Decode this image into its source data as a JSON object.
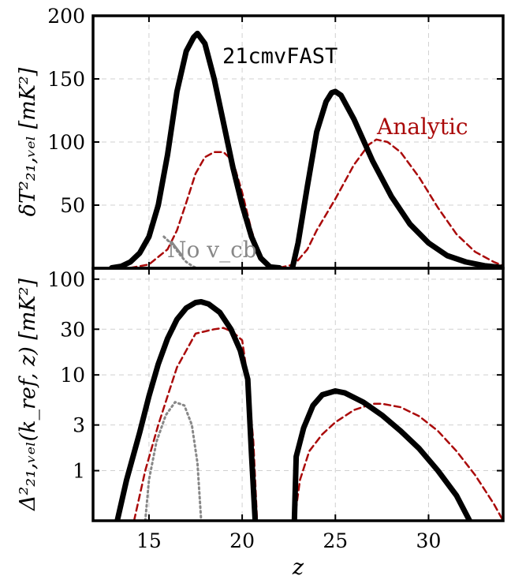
{
  "chart_data": [
    {
      "type": "line",
      "ylabel": "δT²₂₁,ᵥₑₗ [mK²]",
      "xlim": [
        12,
        34
      ],
      "ylim": [
        0,
        200
      ],
      "yticks": [
        50,
        100,
        150,
        200
      ],
      "grid": true,
      "annotations": [
        "21cmvFAST",
        "Analytic",
        "No v_cb"
      ],
      "series": [
        {
          "name": "21cmvFAST",
          "color": "#000000",
          "style": "solid",
          "segments": [
            [
              [
                13.0,
                0.3
              ],
              [
                13.5,
                1.5
              ],
              [
                14.0,
                5
              ],
              [
                14.5,
                12
              ],
              [
                15.0,
                25
              ],
              [
                15.5,
                50
              ],
              [
                16.0,
                90
              ],
              [
                16.5,
                140
              ],
              [
                17.0,
                172
              ],
              [
                17.4,
                183
              ],
              [
                17.6,
                186
              ],
              [
                18.0,
                178
              ],
              [
                18.5,
                150
              ],
              [
                19.0,
                115
              ],
              [
                19.5,
                80
              ],
              [
                20.0,
                50
              ],
              [
                20.5,
                25
              ],
              [
                21.0,
                8
              ],
              [
                21.5,
                1
              ],
              [
                22.0,
                0.3
              ]
            ],
            [
              [
                22.7,
                0.5
              ],
              [
                23.0,
                20
              ],
              [
                23.5,
                65
              ],
              [
                24.0,
                108
              ],
              [
                24.5,
                132
              ],
              [
                24.8,
                139
              ],
              [
                25.0,
                140
              ],
              [
                25.3,
                137
              ],
              [
                26.0,
                118
              ],
              [
                27.0,
                85
              ],
              [
                28.0,
                57
              ],
              [
                29.0,
                35
              ],
              [
                30.0,
                20
              ],
              [
                31.0,
                10
              ],
              [
                32.0,
                5
              ],
              [
                33.0,
                2
              ],
              [
                34.0,
                0.5
              ]
            ]
          ]
        },
        {
          "name": "Analytic",
          "color": "#aa0a0a",
          "style": "dashed",
          "segments": [
            [
              [
                14.0,
                0.3
              ],
              [
                15.0,
                3
              ],
              [
                16.0,
                15
              ],
              [
                16.5,
                30
              ],
              [
                17.0,
                52
              ],
              [
                17.5,
                75
              ],
              [
                18.0,
                88
              ],
              [
                18.5,
                92
              ],
              [
                19.0,
                92
              ],
              [
                19.5,
                85
              ],
              [
                20.0,
                60
              ],
              [
                20.5,
                30
              ],
              [
                21.0,
                8
              ],
              [
                21.5,
                1.5
              ],
              [
                22.0,
                0.5
              ]
            ],
            [
              [
                22.0,
                0.5
              ],
              [
                22.8,
                3
              ],
              [
                23.5,
                15
              ],
              [
                24.0,
                30
              ],
              [
                25.0,
                55
              ],
              [
                26.0,
                82
              ],
              [
                26.8,
                98
              ],
              [
                27.2,
                102
              ],
              [
                27.8,
                100
              ],
              [
                28.5,
                92
              ],
              [
                29.5,
                72
              ],
              [
                30.5,
                48
              ],
              [
                31.5,
                27
              ],
              [
                32.5,
                13
              ],
              [
                33.5,
                5
              ],
              [
                34.0,
                2
              ]
            ]
          ]
        },
        {
          "name": "No v_cb",
          "color": "#888888",
          "style": "dotted",
          "segments": [
            [
              [
                15.8,
                25
              ],
              [
                16.3,
                18
              ],
              [
                16.7,
                10
              ],
              [
                17.0,
                5
              ],
              [
                17.3,
                2
              ],
              [
                17.5,
                0.5
              ]
            ]
          ]
        }
      ]
    },
    {
      "type": "line",
      "ylabel": "Δ²₂₁,ᵥₑₗ(k_ref, z) [mK²]",
      "xlabel": "z",
      "xlim": [
        12,
        34
      ],
      "ylim": [
        0.3,
        130
      ],
      "yscale": "log",
      "xticks": [
        15,
        20,
        25,
        30
      ],
      "yticks": [
        1,
        3,
        10,
        30,
        100
      ],
      "grid": true,
      "series": [
        {
          "name": "21cmvFAST",
          "color": "#000000",
          "style": "solid",
          "segments": [
            [
              [
                13.3,
                0.3
              ],
              [
                13.8,
                0.8
              ],
              [
                14.5,
                2.5
              ],
              [
                15.0,
                6
              ],
              [
                15.5,
                13
              ],
              [
                16.0,
                24
              ],
              [
                16.5,
                38
              ],
              [
                17.0,
                50
              ],
              [
                17.5,
                57
              ],
              [
                17.8,
                58
              ],
              [
                18.2,
                55
              ],
              [
                18.8,
                45
              ],
              [
                19.4,
                30
              ],
              [
                19.9,
                18
              ],
              [
                20.3,
                9
              ],
              [
                20.5,
                1.5
              ],
              [
                20.7,
                0.3
              ]
            ],
            [
              [
                22.8,
                0.3
              ],
              [
                22.9,
                1.4
              ],
              [
                23.3,
                2.8
              ],
              [
                23.8,
                4.8
              ],
              [
                24.3,
                6.2
              ],
              [
                25.0,
                6.8
              ],
              [
                25.5,
                6.5
              ],
              [
                26.5,
                5.2
              ],
              [
                27.5,
                3.8
              ],
              [
                28.5,
                2.6
              ],
              [
                29.5,
                1.7
              ],
              [
                30.5,
                1.0
              ],
              [
                31.5,
                0.55
              ],
              [
                32.2,
                0.3
              ]
            ]
          ]
        },
        {
          "name": "Analytic",
          "color": "#aa0a0a",
          "style": "dashed",
          "segments": [
            [
              [
                14.2,
                0.3
              ],
              [
                14.8,
                1.0
              ],
              [
                15.5,
                3
              ],
              [
                16.0,
                6
              ],
              [
                16.5,
                12
              ],
              [
                17.0,
                18
              ],
              [
                17.5,
                27
              ],
              [
                18.5,
                30
              ],
              [
                19.0,
                31
              ],
              [
                19.5,
                28
              ],
              [
                20.0,
                23
              ],
              [
                20.3,
                9
              ],
              [
                20.6,
                2
              ],
              [
                20.8,
                0.3
              ]
            ],
            [
              [
                22.8,
                0.3
              ],
              [
                23.1,
                0.8
              ],
              [
                23.6,
                1.6
              ],
              [
                24.3,
                2.4
              ],
              [
                25.0,
                3.2
              ],
              [
                26.0,
                4.3
              ],
              [
                27.0,
                5.0
              ],
              [
                27.5,
                5.0
              ],
              [
                28.5,
                4.6
              ],
              [
                29.5,
                3.7
              ],
              [
                30.5,
                2.6
              ],
              [
                31.5,
                1.6
              ],
              [
                32.5,
                0.9
              ],
              [
                33.5,
                0.45
              ],
              [
                34.0,
                0.3
              ]
            ]
          ]
        },
        {
          "name": "No v_cb",
          "color": "#888888",
          "style": "dotted",
          "segments": [
            [
              [
                14.8,
                0.3
              ],
              [
                15.0,
                0.8
              ],
              [
                15.4,
                2.0
              ],
              [
                15.9,
                3.8
              ],
              [
                16.4,
                5.2
              ],
              [
                16.9,
                4.8
              ],
              [
                17.3,
                3.0
              ],
              [
                17.6,
                1.2
              ],
              [
                17.8,
                0.3
              ]
            ]
          ]
        }
      ]
    }
  ]
}
